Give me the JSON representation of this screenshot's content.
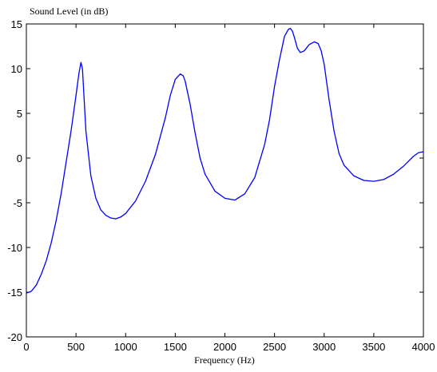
{
  "chart_data": {
    "type": "line",
    "title": "",
    "xlabel": "Frequency (Hz)",
    "ylabel": "Sound Level (in dB)",
    "xlim": [
      0,
      4000
    ],
    "ylim": [
      -20,
      15
    ],
    "x_ticks": [
      0,
      500,
      1000,
      1500,
      2000,
      2500,
      3000,
      3500,
      4000
    ],
    "y_ticks": [
      15,
      10,
      5,
      0,
      -5,
      -10,
      -15,
      -20
    ],
    "grid": false,
    "line_color": "#0000ff",
    "series": [
      {
        "x": [
          0,
          50,
          100,
          150,
          200,
          250,
          300,
          350,
          400,
          450,
          500,
          530,
          550,
          565,
          580,
          600,
          650,
          700,
          750,
          800,
          850,
          900,
          950,
          1000,
          1100,
          1200,
          1300,
          1400,
          1450,
          1500,
          1550,
          1580,
          1600,
          1650,
          1700,
          1750,
          1800,
          1900,
          2000,
          2100,
          2200,
          2300,
          2400,
          2450,
          2500,
          2550,
          2600,
          2640,
          2660,
          2680,
          2700,
          2730,
          2760,
          2800,
          2850,
          2900,
          2940,
          2970,
          3000,
          3050,
          3100,
          3150,
          3200,
          3300,
          3400,
          3500,
          3600,
          3700,
          3800,
          3900,
          3950,
          4000
        ],
        "y": [
          -15.1,
          -14.9,
          -14.2,
          -13.0,
          -11.5,
          -9.5,
          -7.0,
          -4.0,
          -0.5,
          3.0,
          7.0,
          9.5,
          10.7,
          10.0,
          7.0,
          3.0,
          -2.0,
          -4.5,
          -5.8,
          -6.4,
          -6.7,
          -6.8,
          -6.6,
          -6.2,
          -4.8,
          -2.6,
          0.4,
          4.5,
          7.0,
          8.8,
          9.4,
          9.2,
          8.6,
          6.0,
          2.8,
          0.0,
          -1.8,
          -3.7,
          -4.5,
          -4.7,
          -4.0,
          -2.2,
          1.5,
          4.3,
          8.0,
          11.0,
          13.6,
          14.4,
          14.5,
          14.2,
          13.5,
          12.3,
          11.8,
          12.0,
          12.7,
          13.0,
          12.8,
          12.0,
          10.5,
          6.5,
          3.0,
          0.5,
          -0.8,
          -2.0,
          -2.5,
          -2.6,
          -2.4,
          -1.8,
          -0.9,
          0.2,
          0.6,
          0.7
        ]
      }
    ]
  }
}
